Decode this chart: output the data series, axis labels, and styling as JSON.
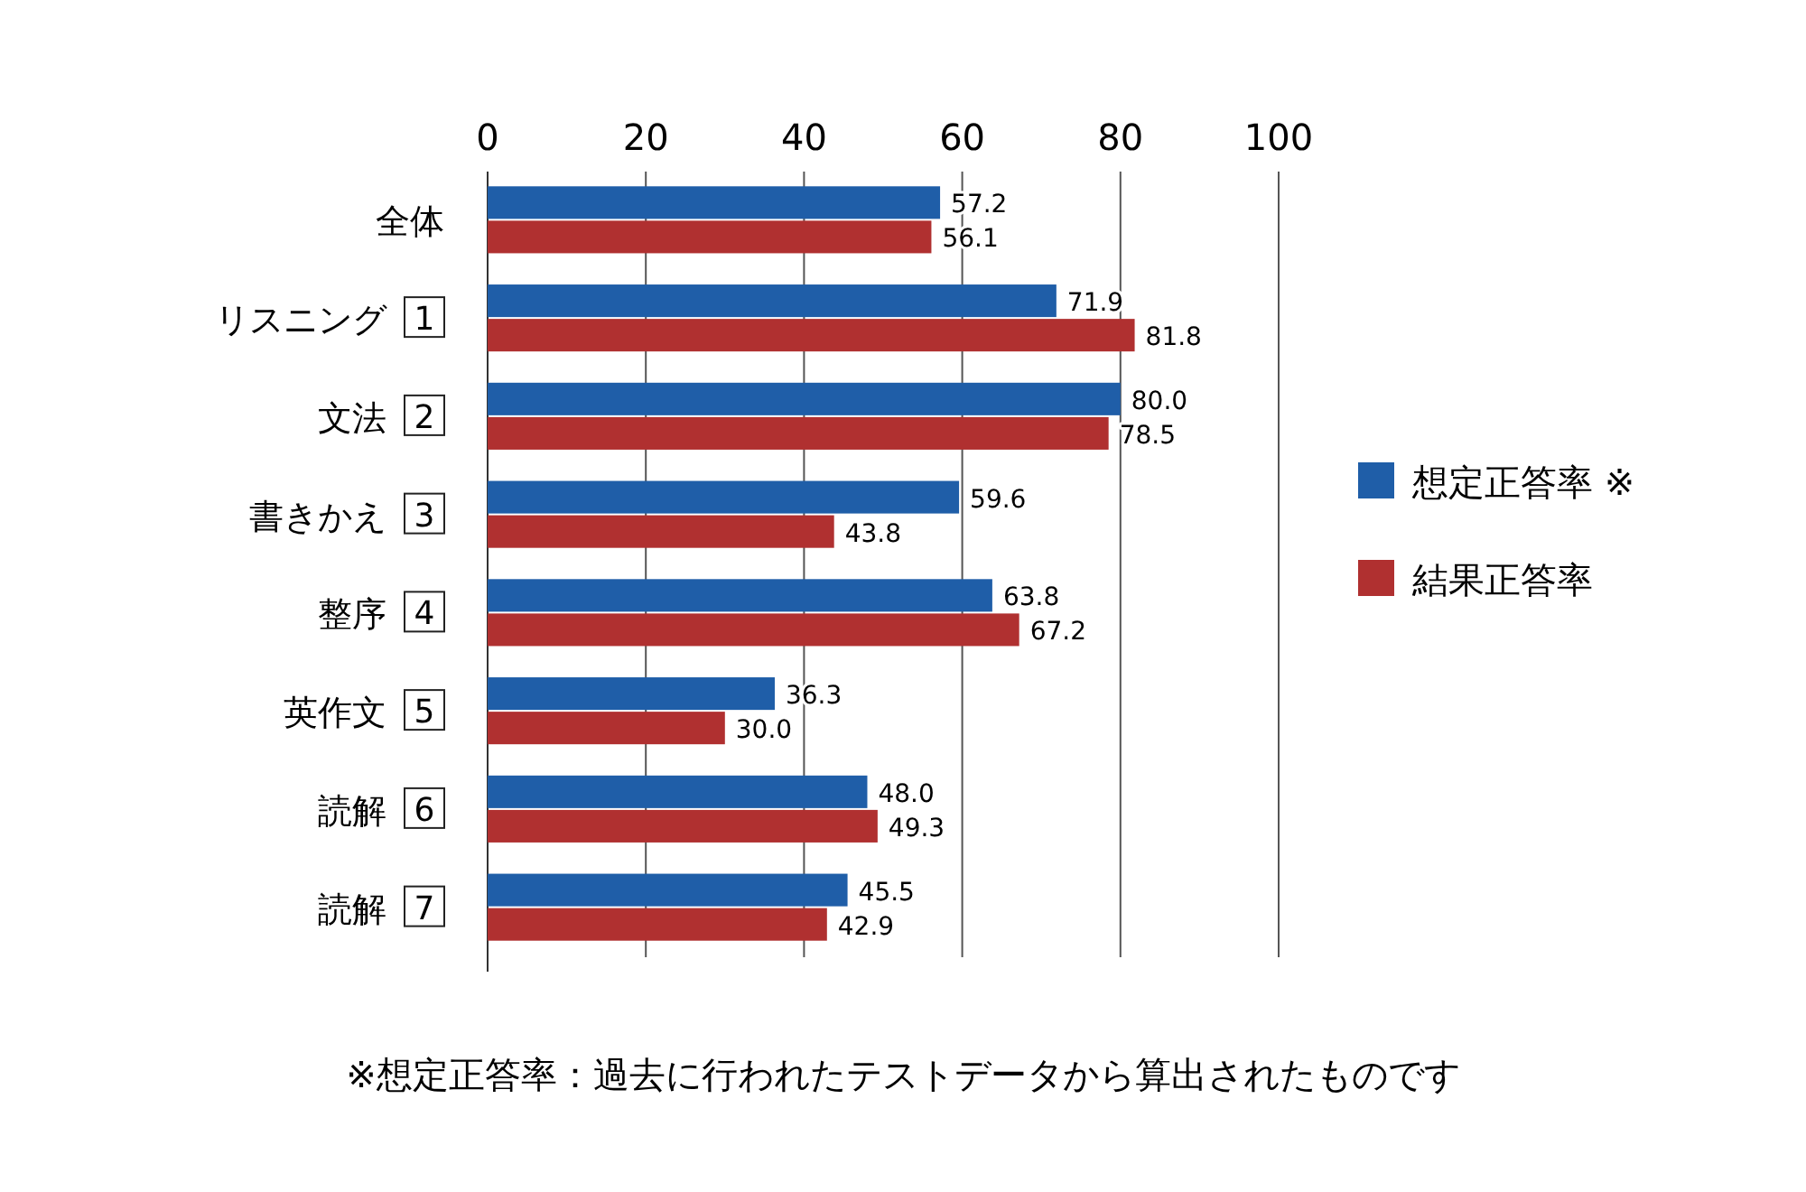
{
  "chart_data": {
    "type": "bar",
    "orientation": "horizontal",
    "categories": [
      "全体",
      "リスニング 1",
      "文法 2",
      "書きかえ 3",
      "整序 4",
      "英作文 5",
      "読解 6",
      "読解 7"
    ],
    "series": [
      {
        "name": "想定正答率 ※",
        "color": "#1f5ea8",
        "values": [
          57.2,
          71.9,
          80.0,
          59.6,
          63.8,
          36.3,
          48.0,
          45.5
        ],
        "value_labels": [
          "57.2",
          "71.9",
          "80.0",
          "59.6",
          "63.8",
          "36.3",
          "48.0",
          "45.5"
        ]
      },
      {
        "name": "結果正答率",
        "color": "#b03030",
        "values": [
          56.1,
          81.8,
          78.5,
          43.8,
          67.2,
          30.0,
          49.3,
          42.9
        ],
        "value_labels": [
          "56.1",
          "81.8",
          "78.5",
          "43.8",
          "67.2",
          "30.0",
          "49.3",
          "42.9"
        ]
      }
    ],
    "xlim": [
      0,
      100
    ],
    "xticks": [
      0,
      20,
      40,
      60,
      80,
      100
    ],
    "grid": "x",
    "legend": "right",
    "annotations": [
      "※想定正答率：過去に行われたテストデータから算出されたものです"
    ]
  }
}
